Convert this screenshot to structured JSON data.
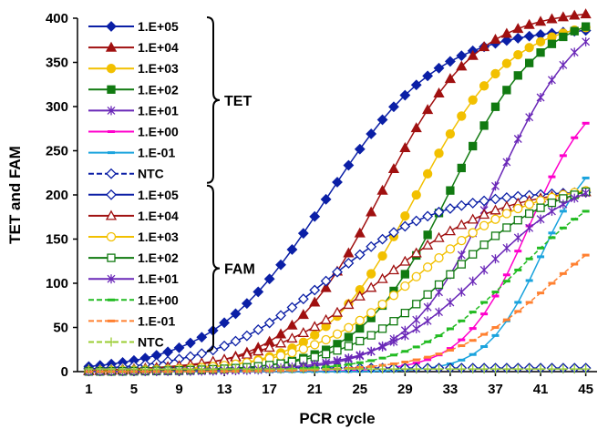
{
  "chart_data": {
    "type": "line",
    "title": "",
    "xlabel": "PCR cycle",
    "ylabel": "TET and FAM",
    "xlim": [
      0,
      46
    ],
    "ylim": [
      0,
      400
    ],
    "xticks": [
      1,
      5,
      9,
      13,
      17,
      21,
      25,
      29,
      33,
      37,
      41,
      45
    ],
    "yticks": [
      0,
      50,
      100,
      150,
      200,
      250,
      300,
      350,
      400
    ],
    "grid": false,
    "legend_position": "top-left",
    "groups": [
      {
        "label": "TET",
        "series_range": [
          0,
          7
        ]
      },
      {
        "label": "FAM",
        "series_range": [
          8,
          15
        ]
      }
    ],
    "series": [
      {
        "name": "1.E+05",
        "group": "TET",
        "color": "#0b1fa6",
        "marker": "diamond",
        "filled": true,
        "dash": "solid",
        "ct": 22,
        "max": 390,
        "k": 0.2
      },
      {
        "name": "1.E+04",
        "group": "TET",
        "color": "#a01010",
        "marker": "triangle",
        "filled": true,
        "dash": "solid",
        "ct": 27,
        "max": 410,
        "k": 0.24
      },
      {
        "name": "1.E+03",
        "group": "TET",
        "color": "#f2c000",
        "marker": "circle",
        "filled": true,
        "dash": "solid",
        "ct": 30,
        "max": 400,
        "k": 0.24
      },
      {
        "name": "1.E+02",
        "group": "TET",
        "color": "#117a11",
        "marker": "square",
        "filled": true,
        "dash": "solid",
        "ct": 33,
        "max": 410,
        "k": 0.25
      },
      {
        "name": "1.E+01",
        "group": "TET",
        "color": "#6a28b8",
        "marker": "asterisk",
        "filled": true,
        "dash": "solid",
        "ct": 37,
        "max": 420,
        "k": 0.26
      },
      {
        "name": "1.E+00",
        "group": "TET",
        "color": "#ff00cc",
        "marker": "dash",
        "filled": true,
        "dash": "solid",
        "ct": 40,
        "max": 330,
        "k": 0.35
      },
      {
        "name": "1.E-01",
        "group": "TET",
        "color": "#1aa3dd",
        "marker": "dash",
        "filled": true,
        "dash": "solid",
        "ct": 41,
        "max": 260,
        "k": 0.42
      },
      {
        "name": "NTC",
        "group": "TET",
        "color": "#0b1fa6",
        "marker": "diamond",
        "filled": false,
        "dash": "dashed",
        "ct": 0,
        "max": 0,
        "k": 0,
        "flat": 4
      },
      {
        "name": "1.E+05",
        "group": "FAM",
        "color": "#0b1fa6",
        "marker": "diamond",
        "filled": false,
        "dash": "solid",
        "ct": 22,
        "max": 205,
        "k": 0.2
      },
      {
        "name": "1.E+04",
        "group": "FAM",
        "color": "#a01010",
        "marker": "triangle",
        "filled": false,
        "dash": "solid",
        "ct": 27,
        "max": 210,
        "k": 0.19
      },
      {
        "name": "1.E+03",
        "group": "FAM",
        "color": "#f2c000",
        "marker": "circle",
        "filled": false,
        "dash": "solid",
        "ct": 30,
        "max": 215,
        "k": 0.2
      },
      {
        "name": "1.E+02",
        "group": "FAM",
        "color": "#117a11",
        "marker": "square",
        "filled": false,
        "dash": "solid",
        "ct": 33,
        "max": 220,
        "k": 0.21
      },
      {
        "name": "1.E+01",
        "group": "FAM",
        "color": "#6a28b8",
        "marker": "asterisk",
        "filled": false,
        "dash": "solid",
        "ct": 36,
        "max": 230,
        "k": 0.22
      },
      {
        "name": "1.E+00",
        "group": "FAM",
        "color": "#22bb22",
        "marker": "dash",
        "filled": true,
        "dash": "dashed",
        "ct": 39,
        "max": 230,
        "k": 0.22
      },
      {
        "name": "1.E-01",
        "group": "FAM",
        "color": "#ff8030",
        "marker": "dash",
        "filled": true,
        "dash": "dashed",
        "ct": 42,
        "max": 200,
        "k": 0.22
      },
      {
        "name": "NTC",
        "group": "FAM",
        "color": "#9acd32",
        "marker": "plus",
        "filled": true,
        "dash": "dashed",
        "ct": 0,
        "max": 0,
        "k": 0,
        "flat": 3
      }
    ]
  }
}
